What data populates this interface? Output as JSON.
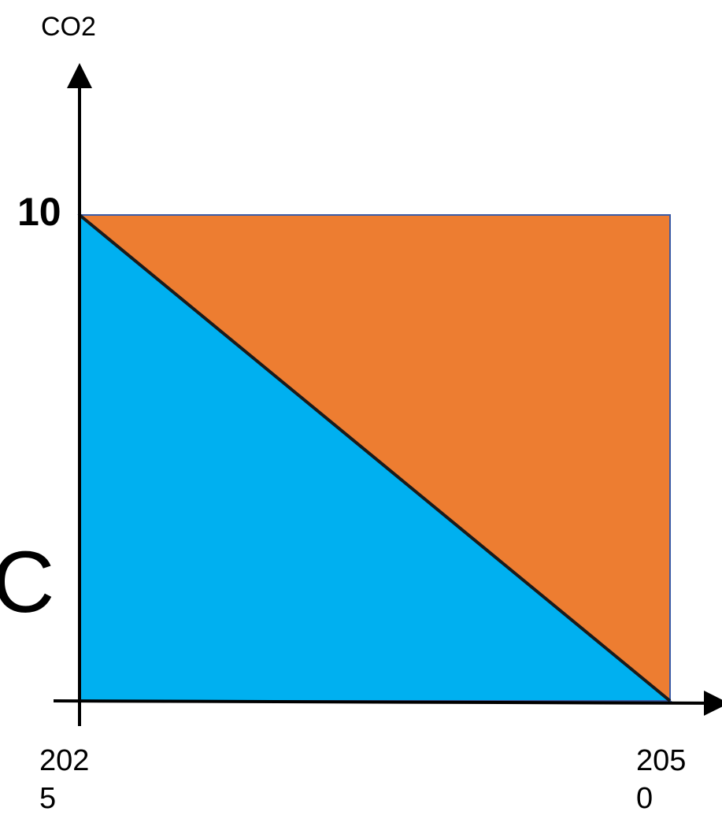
{
  "labels": {
    "y_axis_title": "CO2",
    "y_top_tick": "10",
    "x_start_tick": "202\n5",
    "x_end_tick": "205\n0",
    "left_partial_text": "C"
  },
  "regions": [
    {
      "name": "reduced-emissions-area",
      "fill": "#00B0F0",
      "shape": "triangle below diagonal"
    },
    {
      "name": "remaining-area",
      "fill": "#ED7D31",
      "shape": "triangle above diagonal"
    }
  ],
  "colors": {
    "blue_region": "#00B0F0",
    "orange_region": "#ED7D31",
    "outline": "#3B5BA5",
    "axis": "#000000",
    "background": "#ffffff"
  }
}
